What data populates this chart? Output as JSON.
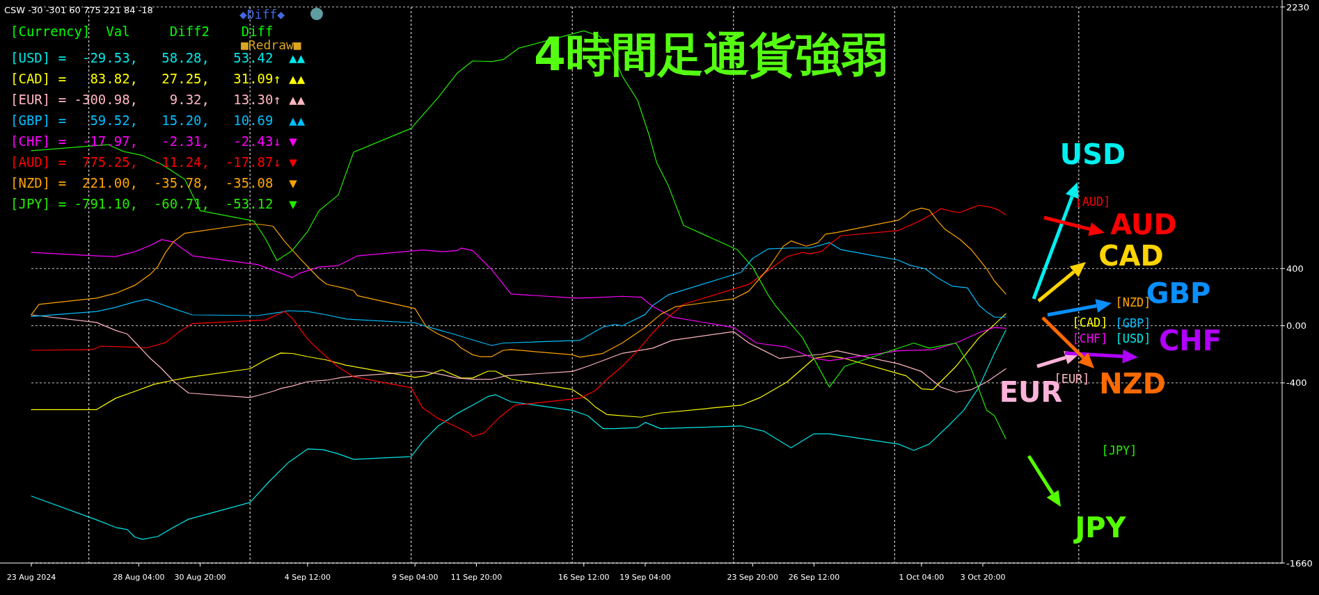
{
  "chart_data": {
    "type": "line",
    "title": "4時間足通貨強弱",
    "annotations": [
      "CSW -30 -301 60 775 221 84 -18",
      "[Currency]  Val     Diff2    Diff",
      "[USD] =  -29.53,   58.28,   53.42  ▲▲",
      "[CAD] =   83.82,   27.25,   31.09↑ ▲▲",
      "[EUR] = -300.98,    9.32,   13.30↑ ▲▲",
      "[GBP] =   59.52,   15.20,   10.69  ▲▲",
      "[CHF] =  -17.97,   -2.31,   -2.43↓ ▼",
      "[AUD] =  775.25,  -11.24,  -17.87↓ ▼",
      "[NZD] =  221.00,  -35.78,  -35.08  ▼",
      "[JPY] = -791.10,  -60.71,  -53.12  ▼",
      "◆Diff◆",
      "■Redraw■",
      "[USD]",
      "[CAD]",
      "[EUR]",
      "[GBP]",
      "[CHF]",
      "[AUD]",
      "[NZD]",
      "[JPY]",
      "USD",
      "CAD",
      "EUR",
      "GBP",
      "CHF",
      "AUD",
      "NZD",
      "JPY"
    ],
    "xlim": [
      "2024-08-23T12:00",
      "2024-10-16T20:00"
    ],
    "xticks": [
      {
        "value": "2024-08-23T12:00",
        "label": "23 Aug 2024"
      },
      {
        "value": "2024-08-28T04:00",
        "label": "28 Aug 04:00"
      },
      {
        "value": "2024-08-30T20:00",
        "label": "30 Aug 20:00"
      },
      {
        "value": "2024-09-04T12:00",
        "label": "4 Sep 12:00"
      },
      {
        "value": "2024-09-09T04:00",
        "label": "9 Sep 04:00"
      },
      {
        "value": "2024-09-11T20:00",
        "label": "11 Sep 20:00"
      },
      {
        "value": "2024-09-16T12:00",
        "label": "16 Sep 12:00"
      },
      {
        "value": "2024-09-19T04:00",
        "label": "19 Sep 04:00"
      },
      {
        "value": "2024-09-23T20:00",
        "label": "23 Sep 20:00"
      },
      {
        "value": "2024-09-26T12:00",
        "label": "26 Sep 12:00"
      },
      {
        "value": "2024-10-01T04:00",
        "label": "1 Oct 04:00"
      },
      {
        "value": "2024-10-03T20:00",
        "label": "3 Oct 20:00"
      }
    ],
    "ylim": [
      -1660,
      2230
    ],
    "yticks": [
      2230,
      400,
      {
        "value": 0,
        "label": "0.00"
      },
      -400,
      -1660
    ],
    "grid": "y",
    "ref_lines": [
      {
        "axis": "x",
        "value": "2024-08-26T00:00",
        "color": "#ffffff",
        "line_style": "dashed"
      },
      {
        "axis": "x",
        "value": "2024-09-02T00:00",
        "color": "#ffffff",
        "line_style": "dashed"
      },
      {
        "axis": "x",
        "value": "2024-09-09T00:00",
        "color": "#ffffff",
        "line_style": "dashed"
      },
      {
        "axis": "x",
        "value": "2024-09-16T00:00",
        "color": "#ffffff",
        "line_style": "dashed"
      },
      {
        "axis": "x",
        "value": "2024-09-23T00:00",
        "color": "#ffffff",
        "line_style": "dashed"
      },
      {
        "axis": "x",
        "value": "2024-09-30T00:00",
        "color": "#ffffff",
        "line_style": "dashed"
      },
      {
        "axis": "x",
        "value": "2024-10-08T00:00",
        "color": "#ffffff",
        "line_style": "dashed"
      }
    ],
    "series": [
      {
        "color": "#00e8e8",
        "x": [
          "2024-08-23T12:00",
          "2024-08-26T08:00",
          "2024-08-27T04:00",
          "2024-08-27T16:00",
          "2024-08-28T00:00",
          "2024-08-28T08:00",
          "2024-08-29T00:00",
          "2024-08-29T16:00",
          "2024-08-30T08:00",
          "2024-09-02T00:00",
          "2024-09-02T20:00",
          "2024-09-03T16:00",
          "2024-09-04T12:00",
          "2024-09-05T04:00",
          "2024-09-05T20:00",
          "2024-09-06T12:00",
          "2024-09-09T00:00",
          "2024-09-09T12:00",
          "2024-09-10T04:00",
          "2024-09-11T00:00",
          "2024-09-11T16:00",
          "2024-09-12T08:00",
          "2024-09-12T16:00",
          "2024-09-13T08:00",
          "2024-09-16T00:00",
          "2024-09-16T16:00",
          "2024-09-17T08:00",
          "2024-09-17T20:00",
          "2024-09-18T20:00",
          "2024-09-19T04:00",
          "2024-09-19T20:00",
          "2024-09-23T08:00",
          "2024-09-24T08:00",
          "2024-09-25T12:00",
          "2024-09-26T12:00",
          "2024-09-27T04:00",
          "2024-09-30T04:00",
          "2024-09-30T20:00",
          "2024-10-01T12:00",
          "2024-10-02T08:00",
          "2024-10-03T00:00",
          "2024-10-03T16:00",
          "2024-10-04T08:00",
          "2024-10-04T20:00"
        ],
        "values": [
          -1192,
          -1358,
          -1411,
          -1426,
          -1479,
          -1494,
          -1474,
          -1411,
          -1353,
          -1236,
          -1090,
          -957,
          -862,
          -867,
          -896,
          -935,
          -915,
          -811,
          -702,
          -614,
          -556,
          -495,
          -483,
          -532,
          -592,
          -629,
          -720,
          -720,
          -712,
          -676,
          -720,
          -701,
          -738,
          -854,
          -756,
          -756,
          -828,
          -872,
          -828,
          -701,
          -592,
          -429,
          -193,
          -30
        ]
      },
      {
        "color": "#ffff00",
        "x": [
          "2024-08-23T12:00",
          "2024-08-26T08:00",
          "2024-08-27T04:00",
          "2024-08-28T00:00",
          "2024-08-28T20:00",
          "2024-08-29T16:00",
          "2024-08-30T08:00",
          "2024-09-02T00:00",
          "2024-09-02T16:00",
          "2024-09-03T08:00",
          "2024-09-03T20:00",
          "2024-09-04T12:00",
          "2024-09-05T08:00",
          "2024-09-06T04:00",
          "2024-09-09T04:00",
          "2024-09-09T16:00",
          "2024-09-10T08:00",
          "2024-09-11T04:00",
          "2024-09-11T16:00",
          "2024-09-12T08:00",
          "2024-09-12T16:00",
          "2024-09-13T08:00",
          "2024-09-16T00:00",
          "2024-09-16T16:00",
          "2024-09-17T00:00",
          "2024-09-17T12:00",
          "2024-09-19T00:00",
          "2024-09-19T20:00",
          "2024-09-23T08:00",
          "2024-09-24T04:00",
          "2024-09-25T08:00",
          "2024-09-26T12:00",
          "2024-09-27T04:00",
          "2024-09-27T20:00",
          "2024-09-30T12:00",
          "2024-10-01T04:00",
          "2024-10-01T16:00",
          "2024-10-02T16:00",
          "2024-10-03T16:00",
          "2024-10-04T08:00",
          "2024-10-04T20:00"
        ],
        "values": [
          -587,
          -587,
          -507,
          -459,
          -410,
          -381,
          -361,
          -301,
          -240,
          -191,
          -194,
          -216,
          -240,
          -276,
          -361,
          -349,
          -308,
          -366,
          -366,
          -318,
          -318,
          -374,
          -446,
          -519,
          -568,
          -621,
          -640,
          -611,
          -556,
          -502,
          -393,
          -229,
          -211,
          -229,
          -350,
          -441,
          -447,
          -284,
          -84,
          7,
          84
        ]
      },
      {
        "color": "#ffb6c1",
        "x": [
          "2024-08-23T12:00",
          "2024-08-26T08:00",
          "2024-08-27T04:00",
          "2024-08-27T16:00",
          "2024-08-28T04:00",
          "2024-08-28T16:00",
          "2024-08-29T04:00",
          "2024-08-29T16:00",
          "2024-08-30T08:00",
          "2024-09-02T00:00",
          "2024-09-02T08:00",
          "2024-09-03T00:00",
          "2024-09-03T08:00",
          "2024-09-03T20:00",
          "2024-09-04T12:00",
          "2024-09-05T08:00",
          "2024-09-06T00:00",
          "2024-09-06T20:00",
          "2024-09-09T12:00",
          "2024-09-10T08:00",
          "2024-09-11T00:00",
          "2024-09-11T16:00",
          "2024-09-12T12:00",
          "2024-09-13T04:00",
          "2024-09-16T00:00",
          "2024-09-16T16:00",
          "2024-09-18T04:00",
          "2024-09-19T12:00",
          "2024-09-20T08:00",
          "2024-09-23T00:00",
          "2024-09-23T16:00",
          "2024-09-24T08:00",
          "2024-09-25T00:00",
          "2024-09-26T00:00",
          "2024-09-26T20:00",
          "2024-09-27T12:00",
          "2024-09-30T04:00",
          "2024-10-01T04:00",
          "2024-10-02T00:00",
          "2024-10-02T16:00",
          "2024-10-03T08:00",
          "2024-10-04T00:00",
          "2024-10-04T20:00"
        ],
        "values": [
          76,
          23,
          -33,
          -58,
          -143,
          -228,
          -301,
          -386,
          -471,
          -502,
          -488,
          -459,
          -439,
          -422,
          -391,
          -381,
          -361,
          -349,
          -318,
          -342,
          -366,
          -374,
          -374,
          -349,
          -320,
          -284,
          -193,
          -157,
          -102,
          -41,
          -121,
          -175,
          -229,
          -211,
          -200,
          -175,
          -266,
          -320,
          -429,
          -465,
          -447,
          -393,
          -301
        ]
      },
      {
        "color": "#00bfff",
        "x": [
          "2024-08-23T12:00",
          "2024-08-26T08:00",
          "2024-08-27T04:00",
          "2024-08-28T00:00",
          "2024-08-28T12:00",
          "2024-08-28T20:00",
          "2024-08-29T16:00",
          "2024-08-30T12:00",
          "2024-09-02T08:00",
          "2024-09-03T08:00",
          "2024-09-03T16:00",
          "2024-09-04T12:00",
          "2024-09-05T08:00",
          "2024-09-06T04:00",
          "2024-09-09T04:00",
          "2024-09-10T00:00",
          "2024-09-10T20:00",
          "2024-09-11T16:00",
          "2024-09-12T12:00",
          "2024-09-13T00:00",
          "2024-09-16T08:00",
          "2024-09-17T08:00",
          "2024-09-17T20:00",
          "2024-09-18T04:00",
          "2024-09-19T04:00",
          "2024-09-19T12:00",
          "2024-09-20T04:00",
          "2024-09-23T08:00",
          "2024-09-23T20:00",
          "2024-09-24T12:00",
          "2024-09-25T12:00",
          "2024-09-26T08:00",
          "2024-09-27T04:00",
          "2024-09-27T16:00",
          "2024-09-30T04:00",
          "2024-09-30T16:00",
          "2024-10-01T08:00",
          "2024-10-01T20:00",
          "2024-10-02T12:00",
          "2024-10-03T04:00",
          "2024-10-03T16:00",
          "2024-10-04T00:00",
          "2024-10-04T08:00",
          "2024-10-04T20:00"
        ],
        "values": [
          64,
          100,
          129,
          168,
          185,
          168,
          120,
          76,
          71,
          95,
          105,
          100,
          76,
          47,
          20,
          -21,
          -58,
          -99,
          -138,
          -121,
          -102,
          -9,
          9,
          -1,
          79,
          143,
          216,
          374,
          471,
          537,
          544,
          544,
          581,
          532,
          459,
          423,
          398,
          338,
          277,
          265,
          143,
          97,
          61,
          60
        ]
      },
      {
        "color": "#ff00ff",
        "x": [
          "2024-08-23T12:00",
          "2024-08-26T08:00",
          "2024-08-27T04:00",
          "2024-08-28T00:00",
          "2024-08-28T16:00",
          "2024-08-29T04:00",
          "2024-08-29T16:00",
          "2024-08-30T12:00",
          "2024-09-02T08:00",
          "2024-09-03T08:00",
          "2024-09-03T20:00",
          "2024-09-04T04:00",
          "2024-09-05T00:00",
          "2024-09-05T20:00",
          "2024-09-06T16:00",
          "2024-09-09T12:00",
          "2024-09-10T08:00",
          "2024-09-11T00:00",
          "2024-09-11T04:00",
          "2024-09-11T16:00",
          "2024-09-12T12:00",
          "2024-09-13T08:00",
          "2024-09-16T04:00",
          "2024-09-17T00:00",
          "2024-09-18T04:00",
          "2024-09-19T00:00",
          "2024-09-19T12:00",
          "2024-09-20T08:00",
          "2024-09-23T00:00",
          "2024-09-24T00:00",
          "2024-09-25T08:00",
          "2024-09-26T12:00",
          "2024-09-27T04:00",
          "2024-09-30T04:00",
          "2024-10-01T16:00",
          "2024-10-02T16:00",
          "2024-10-03T16:00",
          "2024-10-04T08:00",
          "2024-10-04T20:00"
        ],
        "values": [
          513,
          489,
          484,
          518,
          562,
          603,
          586,
          489,
          428,
          368,
          338,
          368,
          411,
          421,
          489,
          530,
          518,
          526,
          543,
          526,
          392,
          222,
          193,
          197,
          206,
          199,
          134,
          61,
          -12,
          -121,
          -150,
          -229,
          -244,
          -175,
          -168,
          -121,
          -48,
          -12,
          -18
        ]
      },
      {
        "color": "#ff0000",
        "x": [
          "2024-08-23T12:00",
          "2024-08-26T04:00",
          "2024-08-26T12:00",
          "2024-08-27T16:00",
          "2024-08-28T12:00",
          "2024-08-29T08:00",
          "2024-08-30T00:00",
          "2024-08-30T12:00",
          "2024-09-02T00:00",
          "2024-09-02T16:00",
          "2024-09-03T08:00",
          "2024-09-03T12:00",
          "2024-09-03T20:00",
          "2024-09-04T12:00",
          "2024-09-05T00:00",
          "2024-09-05T20:00",
          "2024-09-06T12:00",
          "2024-09-09T00:00",
          "2024-09-09T12:00",
          "2024-09-10T04:00",
          "2024-09-10T20:00",
          "2024-09-11T12:00",
          "2024-09-11T16:00",
          "2024-09-12T04:00",
          "2024-09-12T20:00",
          "2024-09-13T12:00",
          "2024-09-16T08:00",
          "2024-09-17T00:00",
          "2024-09-17T12:00",
          "2024-09-18T04:00",
          "2024-09-18T20:00",
          "2024-09-19T12:00",
          "2024-09-20T04:00",
          "2024-09-20T20:00",
          "2024-09-23T16:00",
          "2024-09-24T12:00",
          "2024-09-25T08:00",
          "2024-09-26T00:00",
          "2024-09-26T08:00",
          "2024-09-26T20:00",
          "2024-09-27T04:00",
          "2024-09-27T16:00",
          "2024-09-30T04:00",
          "2024-09-30T12:00",
          "2024-10-01T04:00",
          "2024-10-01T20:00",
          "2024-10-02T00:00",
          "2024-10-02T12:00",
          "2024-10-02T20:00",
          "2024-10-03T08:00",
          "2024-10-03T16:00",
          "2024-10-04T04:00",
          "2024-10-04T12:00",
          "2024-10-04T20:00"
        ],
        "values": [
          -172,
          -167,
          -143,
          -148,
          -155,
          -118,
          -33,
          15,
          35,
          40,
          88,
          100,
          52,
          -94,
          -172,
          -289,
          -357,
          -434,
          -575,
          -648,
          -697,
          -750,
          -775,
          -750,
          -641,
          -556,
          -507,
          -454,
          -375,
          -284,
          -175,
          -48,
          60,
          150,
          289,
          386,
          483,
          513,
          503,
          520,
          569,
          629,
          666,
          690,
          739,
          799,
          819,
          799,
          792,
          823,
          843,
          829,
          811,
          775
        ]
      },
      {
        "color": "#ffa500",
        "x": [
          "2024-08-23T12:00",
          "2024-08-23T20:00",
          "2024-08-26T08:00",
          "2024-08-27T04:00",
          "2024-08-28T00:00",
          "2024-08-28T16:00",
          "2024-08-29T00:00",
          "2024-08-29T08:00",
          "2024-08-29T16:00",
          "2024-08-30T04:00",
          "2024-09-02T00:00",
          "2024-09-02T12:00",
          "2024-09-03T00:00",
          "2024-09-03T12:00",
          "2024-09-04T04:00",
          "2024-09-05T00:00",
          "2024-09-05T08:00",
          "2024-09-06T00:00",
          "2024-09-06T12:00",
          "2024-09-06T16:00",
          "2024-09-09T04:00",
          "2024-09-09T16:00",
          "2024-09-10T04:00",
          "2024-09-10T20:00",
          "2024-09-11T04:00",
          "2024-09-11T16:00",
          "2024-09-12T00:00",
          "2024-09-12T12:00",
          "2024-09-13T00:00",
          "2024-09-13T08:00",
          "2024-09-16T00:00",
          "2024-09-16T08:00",
          "2024-09-17T00:00",
          "2024-09-17T08:00",
          "2024-09-18T04:00",
          "2024-09-19T04:00",
          "2024-09-19T20:00",
          "2024-09-20T12:00",
          "2024-09-23T00:00",
          "2024-09-23T16:00",
          "2024-09-24T12:00",
          "2024-09-25T04:00",
          "2024-09-25T12:00",
          "2024-09-26T04:00",
          "2024-09-26T16:00",
          "2024-09-27T00:00",
          "2024-09-27T12:00",
          "2024-09-30T04:00",
          "2024-09-30T12:00",
          "2024-09-30T16:00",
          "2024-10-01T04:00",
          "2024-10-01T12:00",
          "2024-10-01T20:00",
          "2024-10-02T04:00",
          "2024-10-02T20:00",
          "2024-10-03T08:00",
          "2024-10-04T00:00",
          "2024-10-04T08:00",
          "2024-10-04T20:00"
        ],
        "values": [
          76,
          149,
          193,
          227,
          283,
          360,
          416,
          513,
          586,
          647,
          713,
          708,
          696,
          591,
          470,
          331,
          290,
          266,
          246,
          210,
          120,
          -9,
          -58,
          -106,
          -155,
          -203,
          -216,
          -216,
          -172,
          -167,
          -203,
          -220,
          -203,
          -193,
          -121,
          -12,
          79,
          134,
          188,
          242,
          398,
          556,
          593,
          556,
          581,
          641,
          653,
          739,
          775,
          799,
          823,
          811,
          739,
          678,
          605,
          532,
          398,
          313,
          221
        ]
      },
      {
        "color": "#22ee00",
        "x": [
          "2024-08-23T12:00",
          "2024-08-26T20:00",
          "2024-08-27T12:00",
          "2024-08-28T08:00",
          "2024-08-29T04:00",
          "2024-08-30T04:00",
          "2024-08-30T20:00",
          "2024-09-02T04:00",
          "2024-09-02T16:00",
          "2024-09-03T04:00",
          "2024-09-03T20:00",
          "2024-09-04T12:00",
          "2024-09-05T00:00",
          "2024-09-05T20:00",
          "2024-09-06T12:00",
          "2024-09-09T00:00",
          "2024-09-10T04:00",
          "2024-09-11T00:00",
          "2024-09-11T16:00",
          "2024-09-12T12:00",
          "2024-09-13T00:00",
          "2024-09-13T16:00",
          "2024-09-16T12:00",
          "2024-09-17T04:00",
          "2024-09-17T16:00",
          "2024-09-18T04:00",
          "2024-09-18T20:00",
          "2024-09-19T08:00",
          "2024-09-19T16:00",
          "2024-09-20T04:00",
          "2024-09-20T20:00",
          "2024-09-23T04:00",
          "2024-09-23T20:00",
          "2024-09-24T12:00",
          "2024-09-24T20:00",
          "2024-09-26T00:00",
          "2024-09-27T04:00",
          "2024-09-27T20:00",
          "2024-09-30T20:00",
          "2024-10-01T12:00",
          "2024-10-02T16:00",
          "2024-10-03T08:00",
          "2024-10-04T00:00",
          "2024-10-04T08:00",
          "2024-10-04T20:00"
        ],
        "values": [
          1224,
          1267,
          1219,
          1191,
          1129,
          1024,
          805,
          733,
          611,
          457,
          526,
          659,
          805,
          914,
          1214,
          1381,
          1595,
          1767,
          1852,
          1848,
          1862,
          1941,
          2063,
          2026,
          1941,
          1747,
          1577,
          1334,
          1140,
          982,
          702,
          532,
          411,
          216,
          138,
          -84,
          -429,
          -284,
          -121,
          -157,
          -121,
          -302,
          -592,
          -629,
          -791
        ]
      }
    ]
  }
}
